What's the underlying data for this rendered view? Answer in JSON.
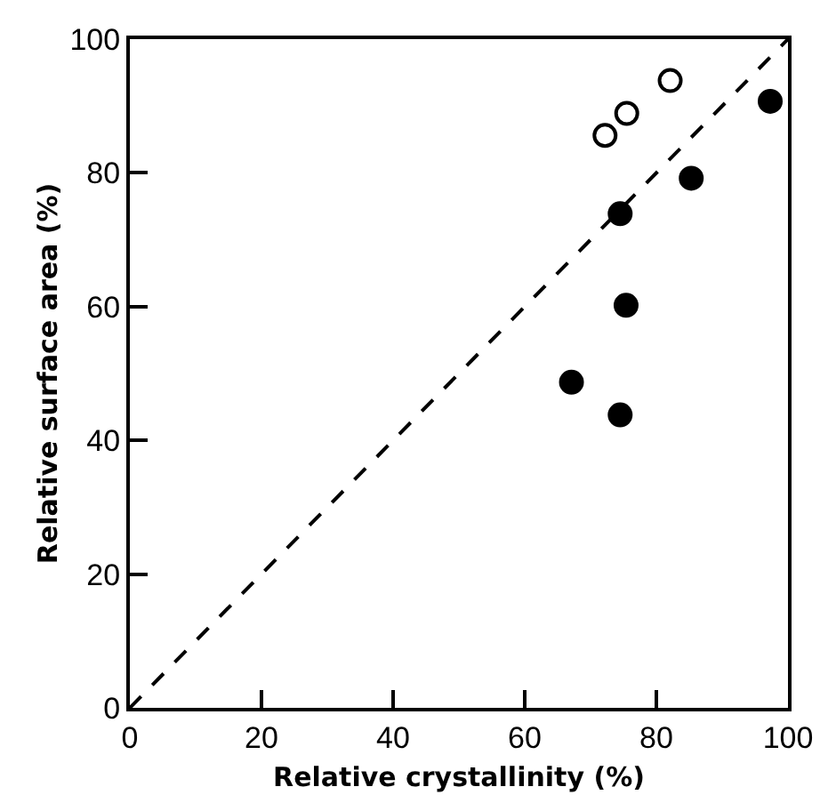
{
  "chart_data": {
    "type": "scatter",
    "xlabel": "Relative crystallinity (%)",
    "ylabel": "Relative surface area (%)",
    "xlim": [
      0,
      100
    ],
    "ylim": [
      0,
      100
    ],
    "xticks": [
      0,
      20,
      40,
      60,
      80,
      100
    ],
    "yticks": [
      0,
      20,
      40,
      60,
      80,
      100
    ],
    "grid": false,
    "legend": false,
    "marker": "circle",
    "series": [
      {
        "color": "#000000",
        "x": [
          67.1,
          74.5,
          75.4,
          74.5,
          85.3,
          97.3
        ],
        "values": [
          48.7,
          43.8,
          60.2,
          73.9,
          79.2,
          90.7
        ]
      },
      {
        "color": "#ffffff",
        "x": [
          72.2,
          75.5,
          82.1
        ],
        "values": [
          85.6,
          88.9,
          93.8
        ]
      },
      {
        "type": "line",
        "color": "#000000",
        "line_style": "dashed",
        "marker": "none",
        "x": [
          0,
          100
        ],
        "values": [
          0,
          100
        ]
      }
    ]
  }
}
